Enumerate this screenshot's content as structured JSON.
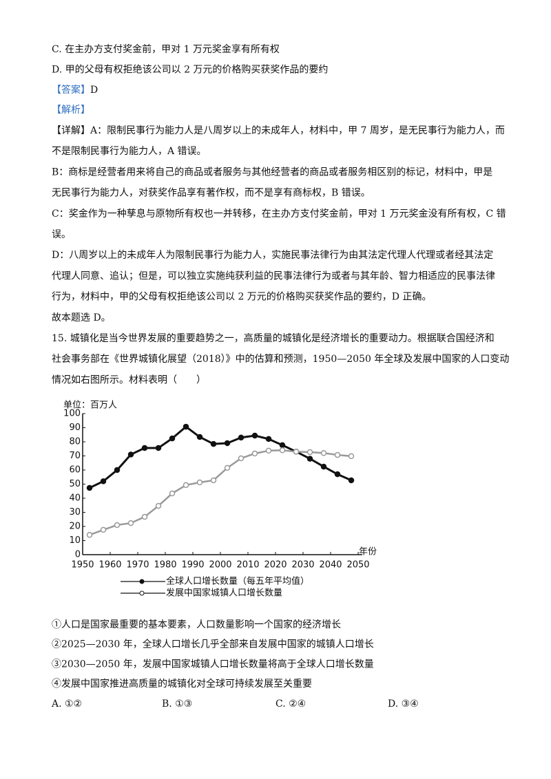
{
  "document": {
    "top_lines": [
      "C. 在主办方支付奖金前，甲对 1 万元奖金享有所有权",
      "D. 甲的父母有权拒绝该公司以 2 万元的价格购买获奖作品的要约"
    ],
    "answer_label": "【答案】",
    "answer": "D",
    "analysis_label": "【解析】",
    "body_lines": [
      "【详解】A：限制民事行为能力人是八周岁以上的未成年人，材料中，甲 7 周岁，是无民事行为能力人，而",
      "不是限制民事行为能力人，A 错误。",
      "B：商标是经营者用来将自己的商品或者服务与其他经营者的商品或者服务相区别的标记，材料中，甲是",
      "无民事行为能力人，对获奖作品享有著作权，而不是享有商标权，B 错误。",
      "C：奖金作为一种孳息与原物所有权也一并转移，在主办方支付奖金前，甲对 1 万元奖金没有所有权，C 错",
      "误。",
      "D：八周岁以上的未成年人为限制民事行为能力人，实施民事法律行为由其法定代理人代理或者经其法定",
      "代理人同意、追认；但是，可以独立实施纯获利益的民事法律行为或者与其年龄、智力相适应的民事法律",
      "行为，材料中，甲的父母有权拒绝该公司以 2 万元的价格购买获奖作品的要约，D 正确。",
      "故本题选 D。",
      "15. 城镇化是当今世界发展的重要趋势之一，高质量的城镇化是经济增长的重要动力。根据联合国经济和",
      "社会事务部在《世界城镇化展望（2018）》中的估算和预测，1950—2050 年全球及发展中国家的人口变动",
      "情况如右图所示。材料表明（　　）"
    ],
    "statements": [
      "①人口是国家最重要的基本要素，人口数量影响一个国家的经济增长",
      "②2025—2030 年，全球人口增长几乎全部来自发展中国家的城镇人口增长",
      "③2030—2050 年，发展中国家城镇人口增长数量将高于全球人口增长数量",
      "④发展中国家推进高质量的城镇化对全球可持续发展至关重要"
    ],
    "options": [
      "A. ①②",
      "B. ①③",
      "C. ②④",
      "D. ③④"
    ]
  },
  "chart_data": {
    "type": "line",
    "y_label": "单位：百万人",
    "x_label": "年份",
    "x": [
      1952.5,
      1957.5,
      1962.5,
      1967.5,
      1972.5,
      1977.5,
      1982.5,
      1987.5,
      1992.5,
      1997.5,
      2002.5,
      2007.5,
      2012.5,
      2017.5,
      2022.5,
      2027.5,
      2032.5,
      2037.5,
      2042.5,
      2047.5
    ],
    "series": [
      {
        "name": "全球人口增长数量（每五年平均值）",
        "color": "#111111",
        "marker": "filled",
        "values": [
          47.3,
          52,
          60,
          71,
          75.6,
          75.6,
          82.4,
          90.7,
          83.4,
          78.5,
          79,
          83,
          84.4,
          82,
          77.6,
          73,
          68,
          62.4,
          57,
          52.7
        ]
      },
      {
        "name": "发展中国家城镇人口增长数量",
        "color": "#999999",
        "marker": "hollow",
        "values": [
          14,
          17.6,
          21,
          22.4,
          26.8,
          34.6,
          43.4,
          49.3,
          51.2,
          52.7,
          61.5,
          68.3,
          71.7,
          73.7,
          74,
          73,
          72.7,
          72,
          70.7,
          69.8
        ]
      }
    ],
    "xlim": [
      1950,
      2050
    ],
    "ylim": [
      0,
      100
    ],
    "xticks": [
      1950,
      1960,
      1970,
      1980,
      1990,
      2000,
      2010,
      2020,
      2030,
      2040,
      2050
    ],
    "yticks": [
      0,
      10,
      20,
      30,
      40,
      50,
      60,
      70,
      80,
      90,
      100
    ]
  }
}
